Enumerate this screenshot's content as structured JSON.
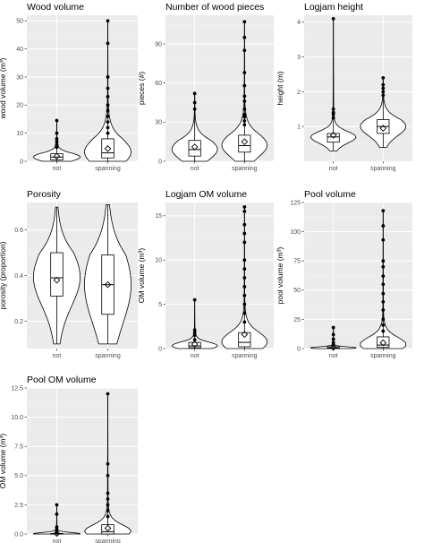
{
  "chart_data": [
    {
      "type": "violin",
      "title": "Wood volume",
      "ylabel": "wood volume (m³)",
      "categories": [
        "not",
        "spanning"
      ],
      "ylim": [
        0,
        52
      ],
      "yticks": [
        0,
        10,
        20,
        30,
        40,
        50
      ],
      "series": [
        {
          "category": "not",
          "q1": 0.5,
          "median": 1.5,
          "q3": 2.7,
          "mean": 1.8,
          "min": 0,
          "max": 14.5,
          "outliers": [
            5,
            5.5,
            6,
            7,
            8,
            10,
            14.5
          ]
        },
        {
          "category": "spanning",
          "q1": 1.2,
          "median": 3,
          "q3": 8,
          "mean": 4.5,
          "min": 0,
          "max": 50,
          "outliers": [
            10,
            12,
            14,
            16,
            18,
            20,
            23,
            26,
            30,
            42,
            50
          ]
        }
      ]
    },
    {
      "type": "violin",
      "title": "Number of wood pieces",
      "ylabel": "pieces (#)",
      "categories": [
        "not",
        "spanning"
      ],
      "ylim": [
        0,
        112
      ],
      "yticks": [
        0,
        30,
        60,
        90
      ],
      "series": [
        {
          "category": "not",
          "q1": 4,
          "median": 9,
          "q3": 16,
          "mean": 11,
          "min": 0,
          "max": 52,
          "outliers": [
            40,
            45,
            52
          ]
        },
        {
          "category": "spanning",
          "q1": 7,
          "median": 12,
          "q3": 20,
          "mean": 15,
          "min": 0,
          "max": 107,
          "outliers": [
            28,
            31,
            34,
            36,
            40,
            46,
            50,
            58,
            68,
            85,
            95,
            107
          ]
        }
      ]
    },
    {
      "type": "violin",
      "title": "Logjam height",
      "ylabel": "height (m)",
      "categories": [
        "not",
        "spanning"
      ],
      "ylim": [
        0,
        4.2
      ],
      "yticks": [
        1,
        2,
        3,
        4
      ],
      "series": [
        {
          "category": "not",
          "q1": 0.55,
          "median": 0.7,
          "q3": 0.8,
          "mean": 0.75,
          "min": 0.3,
          "max": 4.1,
          "outliers": [
            1.25,
            1.35,
            1.4,
            1.5,
            4.1
          ]
        },
        {
          "category": "spanning",
          "q1": 0.8,
          "median": 1.0,
          "q3": 1.2,
          "mean": 0.95,
          "min": 0.4,
          "max": 2.4,
          "outliers": [
            1.9,
            2.0,
            2.1,
            2.2,
            2.4
          ]
        }
      ]
    },
    {
      "type": "violin",
      "title": "Porosity",
      "ylabel": "porosity (proportion)",
      "categories": [
        "not",
        "spanning"
      ],
      "ylim": [
        0.08,
        0.72
      ],
      "yticks": [
        0.2,
        0.4,
        0.6
      ],
      "series": [
        {
          "category": "not",
          "q1": 0.31,
          "median": 0.39,
          "q3": 0.5,
          "mean": 0.38,
          "min": 0.1,
          "max": 0.7,
          "outliers": []
        },
        {
          "category": "spanning",
          "q1": 0.23,
          "median": 0.36,
          "q3": 0.49,
          "mean": 0.36,
          "min": 0.1,
          "max": 0.71,
          "outliers": []
        }
      ]
    },
    {
      "type": "violin",
      "title": "Logjam OM volume",
      "ylabel": "OM volume (m³)",
      "categories": [
        "not",
        "spanning"
      ],
      "ylim": [
        0,
        16.5
      ],
      "yticks": [
        0,
        5,
        10,
        15
      ],
      "series": [
        {
          "category": "not",
          "q1": 0.1,
          "median": 0.3,
          "q3": 0.7,
          "mean": 0.5,
          "min": 0,
          "max": 5.5,
          "outliers": [
            1.0,
            1.5,
            1.8,
            2.1,
            5.5
          ]
        },
        {
          "category": "spanning",
          "q1": 0.2,
          "median": 0.7,
          "q3": 1.8,
          "mean": 1.6,
          "min": 0,
          "max": 16,
          "outliers": [
            3,
            4,
            5,
            6,
            7,
            8,
            9,
            10,
            12,
            13,
            14,
            15.5,
            16
          ]
        }
      ]
    },
    {
      "type": "violin",
      "title": "Pool volume",
      "ylabel": "pool volume (m³)",
      "categories": [
        "not",
        "spanning"
      ],
      "ylim": [
        0,
        125
      ],
      "yticks": [
        0,
        25,
        50,
        75,
        100,
        125
      ],
      "series": [
        {
          "category": "not",
          "q1": 0.2,
          "median": 0.5,
          "q3": 1.5,
          "mean": 1.0,
          "min": 0,
          "max": 18,
          "outliers": [
            3,
            5,
            8,
            12,
            18
          ]
        },
        {
          "category": "spanning",
          "q1": 1,
          "median": 3,
          "q3": 10,
          "mean": 5,
          "min": 0,
          "max": 118,
          "outliers": [
            15,
            20,
            25,
            33,
            40,
            47,
            55,
            62,
            70,
            75,
            93,
            105,
            118
          ]
        }
      ]
    },
    {
      "type": "violin",
      "title": "Pool OM volume",
      "ylabel": "OM volume (m³)",
      "categories": [
        "not",
        "spanning"
      ],
      "ylim": [
        0,
        12.5
      ],
      "yticks": [
        0.0,
        2.5,
        5.0,
        7.5,
        10.0,
        12.5
      ],
      "series": [
        {
          "category": "not",
          "q1": 0,
          "median": 0.02,
          "q3": 0.05,
          "mean": 0.05,
          "min": 0,
          "max": 2.5,
          "outliers": [
            0.2,
            0.4,
            0.6,
            1.7,
            2.5
          ]
        },
        {
          "category": "spanning",
          "q1": 0,
          "median": 0.2,
          "q3": 0.8,
          "mean": 0.5,
          "min": 0,
          "max": 12,
          "outliers": [
            1.5,
            2.0,
            2.5,
            3.0,
            3.5,
            5.0,
            6.0,
            12.0
          ]
        }
      ]
    }
  ]
}
